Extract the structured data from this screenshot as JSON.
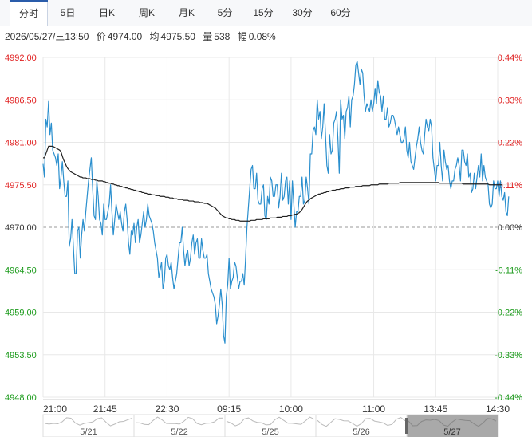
{
  "tabs": [
    "分时",
    "5日",
    "日K",
    "周K",
    "月K",
    "5分",
    "15分",
    "30分",
    "60分"
  ],
  "active_tab": 0,
  "info": {
    "datetime": "2026/05/27/三13:50",
    "price_label": "价",
    "price": "4974.00",
    "avg_label": "均",
    "avg": "4975.50",
    "vol_label": "量",
    "vol": "538",
    "range_label": "幅",
    "range": "0.08%"
  },
  "colors": {
    "price_line": "#2a8fce",
    "avg_line": "#222222",
    "up": "#e02020",
    "down": "#1a9a1a",
    "neutral": "#333333",
    "grid": "#e8e8e8",
    "base_line": "#999999"
  },
  "chart_data": {
    "type": "line",
    "title": "",
    "ylim": [
      4948.0,
      4992.0
    ],
    "base_price": 4970.0,
    "y_ticks": [
      "4992.00",
      "4986.50",
      "4981.00",
      "4975.50",
      "4970.00",
      "4964.50",
      "4959.00",
      "4953.50",
      "4948.00"
    ],
    "y_ticks_right": [
      "0.44%",
      "0.33%",
      "0.22%",
      "0.11%",
      "0.00%",
      "-0.11%",
      "-0.22%",
      "-0.33%",
      "-0.44%"
    ],
    "x_ticks": [
      "21:00",
      "21:45",
      "22:30",
      "09:15",
      "10:00",
      "11:00",
      "13:45",
      "14:30"
    ],
    "x_tick_index": [
      0,
      45,
      90,
      135,
      180,
      240,
      285,
      330
    ],
    "total_minutes": 330,
    "series": [
      {
        "values": [
          4978.2,
          4976.5,
          4984.0,
          4983.0,
          4986.3,
          4982.0,
          4983.5,
          4980.0,
          4979.5,
          4979.0,
          4978.0,
          4979.5,
          4975.0,
          4976.5,
          4978.5,
          4976.0,
          4974.0,
          4974.0,
          4976.0,
          4967.5,
          4968.5,
          4971.0,
          4967.5,
          4964.0,
          4964.0,
          4969.5,
          4970.0,
          4966.0,
          4969.0,
          4971.0,
          4969.5,
          4972.0,
          4974.0,
          4976.0,
          4977.5,
          4979.0,
          4975.0,
          4971.5,
          4971.0,
          4976.0,
          4974.0,
          4971.0,
          4970.5,
          4969.0,
          4973.0,
          4971.0,
          4971.0,
          4972.0,
          4973.0,
          4975.5,
          4972.0,
          4969.0,
          4971.0,
          4973.0,
          4972.0,
          4971.0,
          4972.0,
          4970.5,
          4969.5,
          4972.0,
          4973.0,
          4971.0,
          4968.0,
          4966.5,
          4969.5,
          4969.0,
          4970.5,
          4968.0,
          4970.0,
          4971.0,
          4968.0,
          4969.0,
          4970.5,
          4972.0,
          4970.0,
          4971.0,
          4973.0,
          4971.5,
          4971.0,
          4970.5,
          4969.5,
          4968.0,
          4967.0,
          4966.0,
          4963.5,
          4964.5,
          4965.5,
          4962.0,
          4963.0,
          4966.0,
          4966.5,
          4965.0,
          4964.5,
          4965.5,
          4963.5,
          4962.0,
          4963.0,
          4964.0,
          4966.0,
          4968.0,
          4968.0,
          4970.0,
          4967.0,
          4965.0,
          4966.5,
          4967.0,
          4965.0,
          4966.0,
          4968.0,
          4969.0,
          4966.5,
          4968.0,
          4968.5,
          4966.0,
          4966.0,
          4968.5,
          4967.0,
          4966.0,
          4966.0,
          4966.5,
          4964.0,
          4963.0,
          4962.0,
          4961.5,
          4961.0,
          4960.0,
          4957.5,
          4958.5,
          4960.0,
          4962.0,
          4960.0,
          4956.0,
          4955.0,
          4961.0,
          4962.5,
          4966.0,
          4962.0,
          4963.0,
          4963.5,
          4965.5,
          4965.0,
          4963.5,
          4962.0,
          4963.0,
          4963.0,
          4964.0,
          4962.5,
          4966.0,
          4970.0,
          4972.5,
          4975.0,
          4977.5,
          4978.0,
          4975.0,
          4975.0,
          4977.0,
          4973.5,
          4973.0,
          4973.0,
          4975.0,
          4975.5,
          4971.5,
          4971.0,
          4974.0,
          4973.0,
          4976.5,
          4976.0,
          4974.0,
          4974.0,
          4975.5,
          4975.5,
          4972.5,
          4974.0,
          4977.0,
          4973.5,
          4974.0,
          4976.0,
          4976.5,
          4973.0,
          4976.0,
          4971.0,
          4976.0,
          4973.0,
          4970.0,
          4972.0,
          4972.0,
          4974.0,
          4974.0,
          4976.5,
          4973.0,
          4973.5,
          4976.5,
          4975.0,
          4973.0,
          4979.5,
          4979.5,
          4982.5,
          4983.0,
          4982.0,
          4986.5,
          4984.0,
          4985.0,
          4981.5,
          4983.0,
          4986.0,
          4982.0,
          4978.0,
          4977.0,
          4982.0,
          4979.5,
          4980.0,
          4983.5,
          4984.0,
          4985.0,
          4981.5,
          4977.0,
          4986.5,
          4984.0,
          4984.5,
          4981.5,
          4985.0,
          4985.5,
          4987.0,
          4983.0,
          4986.5,
          4987.0,
          4988.5,
          4991.0,
          4991.5,
          4990.0,
          4988.5,
          4990.5,
          4990.0,
          4987.0,
          4985.0,
          4986.0,
          4985.5,
          4985.0,
          4986.5,
          4985.0,
          4986.0,
          4988.0,
          4986.0,
          4989.0,
          4987.5,
          4987.0,
          4985.0,
          4987.0,
          4984.0,
          4984.0,
          4985.5,
          4983.0,
          4983.5,
          4984.5,
          4984.5,
          4984.0,
          4983.0,
          4982.0,
          4983.0,
          4982.0,
          4981.0,
          4981.0,
          4981.5,
          4983.0,
          4980.0,
          4979.0,
          4981.0,
          4978.5,
          4978.0,
          4977.5,
          4979.0,
          4980.5,
          4981.5,
          4983.0,
          4981.0,
          4980.0,
          4979.5,
          4982.0,
          4984.0,
          4983.0,
          4982.5,
          4984.0,
          4983.0,
          4979.0,
          4977.5,
          4976.0,
          4978.0,
          4978.0,
          4981.0,
          4978.0,
          4976.0,
          4980.0,
          4978.5,
          4977.5,
          4978.0,
          4976.0,
          4975.0,
          4976.0,
          4976.0,
          4977.5,
          4978.0,
          4979.0,
          4978.0,
          4976.0,
          4980.0,
          4980.0,
          4978.5,
          4978.0,
          4979.5,
          4976.5,
          4977.0,
          4974.5,
          4975.0,
          4977.0,
          4975.0,
          4976.5,
          4978.0,
          4976.5,
          4979.5,
          4976.0,
          4978.0,
          4976.5,
          4976.0,
          4975.5,
          4973.0,
          4972.5,
          4973.0,
          4976.0,
          4975.0,
          4975.0,
          4976.0,
          4974.0,
          4976.0,
          4974.0,
          4973.5,
          4974.5,
          4972.0,
          4971.5,
          4974.0
        ]
      },
      {
        "values": [
          4979.0,
          4979.0,
          4979.5,
          4980.0,
          4980.5,
          4980.5,
          4980.5,
          4980.5,
          4980.4,
          4980.3,
          4980.2,
          4980.1,
          4980.0,
          4979.8,
          4979.2,
          4978.7,
          4978.3,
          4977.9,
          4977.6,
          4977.4,
          4977.2,
          4977.1,
          4977.0,
          4976.9,
          4976.8,
          4976.7,
          4976.6,
          4976.5,
          4976.5,
          4976.4,
          4976.4,
          4976.4,
          4976.3,
          4976.3,
          4976.3,
          4976.2,
          4976.2,
          4976.2,
          4976.1,
          4976.1,
          4976.0,
          4976.0,
          4976.0,
          4976.0,
          4975.9,
          4975.9,
          4975.8,
          4975.8,
          4975.7,
          4975.7,
          4975.6,
          4975.6,
          4975.5,
          4975.5,
          4975.4,
          4975.4,
          4975.3,
          4975.3,
          4975.2,
          4975.2,
          4975.1,
          4975.1,
          4975.0,
          4975.0,
          4974.9,
          4974.9,
          4974.8,
          4974.8,
          4974.7,
          4974.7,
          4974.6,
          4974.6,
          4974.5,
          4974.5,
          4974.4,
          4974.4,
          4974.3,
          4974.3,
          4974.3,
          4974.2,
          4974.2,
          4974.2,
          4974.1,
          4974.1,
          4974.1,
          4974.0,
          4974.0,
          4974.0,
          4974.0,
          4973.9,
          4973.9,
          4973.9,
          4973.8,
          4973.8,
          4973.8,
          4973.7,
          4973.7,
          4973.7,
          4973.6,
          4973.6,
          4973.6,
          4973.6,
          4973.5,
          4973.5,
          4973.5,
          4973.5,
          4973.4,
          4973.4,
          4973.4,
          4973.4,
          4973.3,
          4973.3,
          4973.3,
          4973.3,
          4973.2,
          4973.2,
          4973.2,
          4973.1,
          4973.1,
          4973.1,
          4973.0,
          4972.9,
          4972.8,
          4972.7,
          4972.6,
          4972.5,
          4972.3,
          4972.1,
          4971.9,
          4971.7,
          4971.5,
          4971.4,
          4971.3,
          4971.2,
          4971.2,
          4971.1,
          4971.1,
          4971.0,
          4971.0,
          4971.0,
          4970.9,
          4970.9,
          4970.9,
          4970.8,
          4970.8,
          4970.8,
          4970.8,
          4970.8,
          4970.8,
          4970.8,
          4970.8,
          4970.9,
          4970.9,
          4970.9,
          4970.9,
          4971.0,
          4971.0,
          4971.0,
          4971.0,
          4971.0,
          4971.1,
          4971.1,
          4971.1,
          4971.1,
          4971.1,
          4971.2,
          4971.2,
          4971.2,
          4971.2,
          4971.2,
          4971.3,
          4971.3,
          4971.3,
          4971.3,
          4971.4,
          4971.4,
          4971.4,
          4971.4,
          4971.5,
          4971.5,
          4971.5,
          4971.6,
          4971.6,
          4971.7,
          4971.7,
          4971.8,
          4971.9,
          4972.1,
          4972.3,
          4972.6,
          4972.9,
          4973.2,
          4973.4,
          4973.5,
          4973.7,
          4973.8,
          4973.9,
          4974.0,
          4974.1,
          4974.2,
          4974.3,
          4974.3,
          4974.4,
          4974.4,
          4974.5,
          4974.5,
          4974.6,
          4974.6,
          4974.7,
          4974.7,
          4974.8,
          4974.8,
          4974.8,
          4974.9,
          4974.9,
          4974.9,
          4975.0,
          4975.0,
          4975.0,
          4975.1,
          4975.1,
          4975.1,
          4975.1,
          4975.2,
          4975.2,
          4975.2,
          4975.2,
          4975.3,
          4975.3,
          4975.3,
          4975.3,
          4975.3,
          4975.4,
          4975.4,
          4975.4,
          4975.4,
          4975.4,
          4975.4,
          4975.5,
          4975.5,
          4975.5,
          4975.5,
          4975.5,
          4975.5,
          4975.6,
          4975.6,
          4975.6,
          4975.6,
          4975.6,
          4975.6,
          4975.6,
          4975.7,
          4975.7,
          4975.7,
          4975.7,
          4975.7,
          4975.7,
          4975.7,
          4975.7,
          4975.8,
          4975.8,
          4975.8,
          4975.8,
          4975.8,
          4975.8,
          4975.8,
          4975.8,
          4975.8,
          4975.8,
          4975.8,
          4975.8,
          4975.8,
          4975.8,
          4975.8,
          4975.8,
          4975.8,
          4975.8,
          4975.8,
          4975.8,
          4975.8,
          4975.8,
          4975.8,
          4975.8,
          4975.8,
          4975.8,
          4975.8,
          4975.8,
          4975.8,
          4975.7,
          4975.7,
          4975.7,
          4975.7,
          4975.7,
          4975.7,
          4975.7,
          4975.7,
          4975.7,
          4975.7,
          4975.7,
          4975.7,
          4975.7,
          4975.7,
          4975.7,
          4975.7,
          4975.7,
          4975.6,
          4975.6,
          4975.6,
          4975.6,
          4975.6,
          4975.6,
          4975.6,
          4975.6,
          4975.6,
          4975.6,
          4975.6,
          4975.6,
          4975.6,
          4975.6,
          4975.6,
          4975.6,
          4975.6,
          4975.6,
          4975.6,
          4975.5,
          4975.5,
          4975.5,
          4975.5,
          4975.5,
          4975.5,
          4975.5,
          4975.5,
          4975.5,
          4975.5
        ]
      }
    ]
  },
  "navigator": {
    "dates": [
      "5/21",
      "5/22",
      "5/25",
      "5/26",
      "5/27"
    ],
    "selected_index": 4
  }
}
